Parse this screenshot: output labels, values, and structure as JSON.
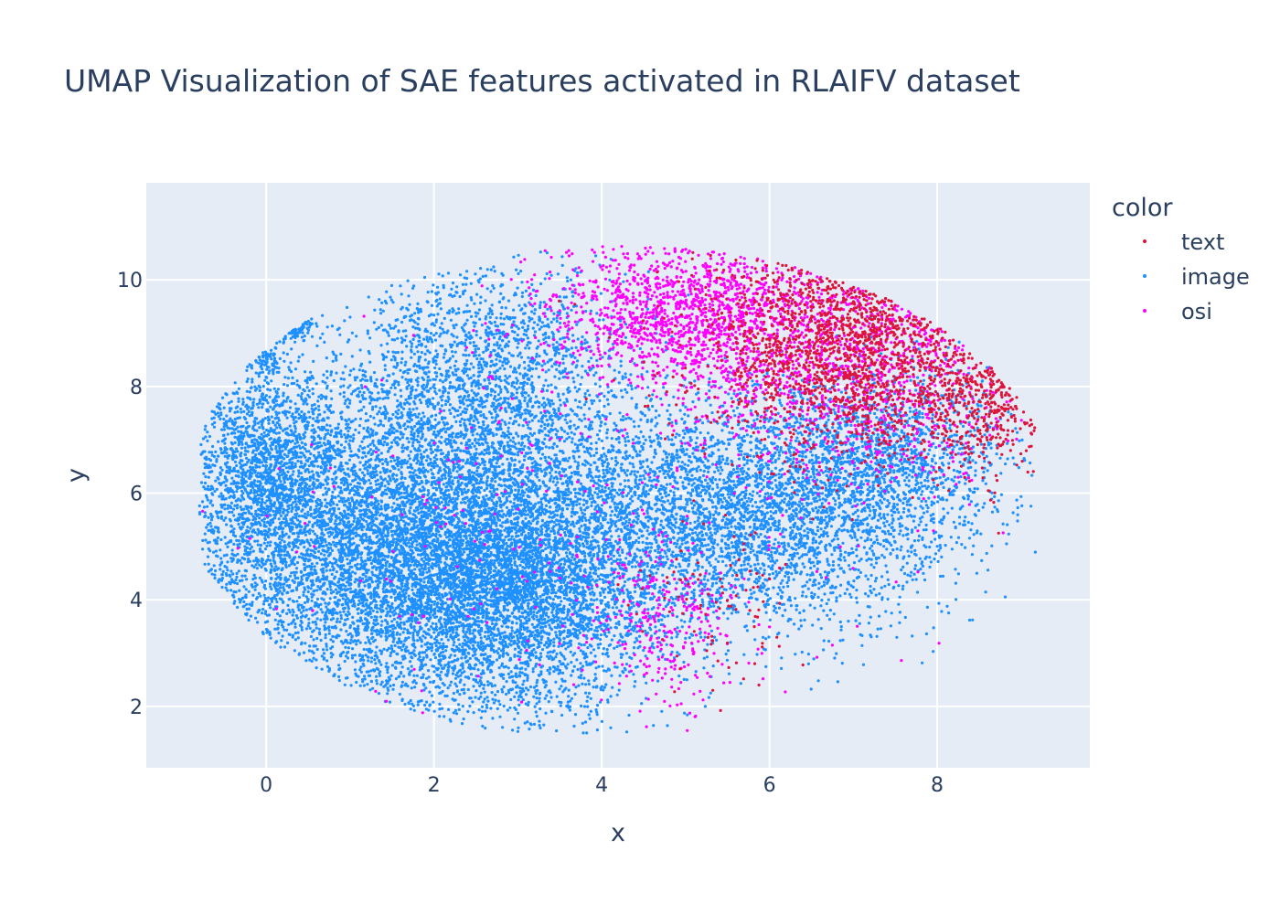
{
  "chart_data": {
    "type": "scatter",
    "title": "UMAP Visualization of SAE features activated in RLAIFV dataset",
    "xlabel": "x",
    "ylabel": "y",
    "xlim": [
      -1.43,
      9.82
    ],
    "ylim": [
      0.85,
      11.82
    ],
    "xticks": [
      0,
      2,
      4,
      6,
      8
    ],
    "yticks": [
      2,
      4,
      6,
      8,
      10
    ],
    "grid": true,
    "background": "#e5ecf6",
    "legend": {
      "title": "color",
      "position": "right",
      "entries": [
        "text",
        "image",
        "osi"
      ]
    },
    "series": [
      {
        "name": "text",
        "color": "#dc143c",
        "points_note_regions": [
          {
            "cx": 7.0,
            "cy": 8.8,
            "sx": 0.85,
            "sy": 1.1,
            "n": 1700
          },
          {
            "cx": 8.6,
            "cy": 7.6,
            "sx": 0.45,
            "sy": 0.6,
            "n": 350
          },
          {
            "cx": 5.4,
            "cy": 4.0,
            "sx": 0.5,
            "sy": 0.9,
            "n": 90
          }
        ]
      },
      {
        "name": "image",
        "color": "#1e90ff",
        "points_note_regions": [
          {
            "cx": 1.6,
            "cy": 5.0,
            "sx": 1.3,
            "sy": 1.5,
            "n": 7000
          },
          {
            "cx": 3.0,
            "cy": 4.3,
            "sx": 0.9,
            "sy": 1.2,
            "n": 3500
          },
          {
            "cx": 2.6,
            "cy": 8.2,
            "sx": 0.9,
            "sy": 1.1,
            "n": 1800
          },
          {
            "cx": 0.0,
            "cy": 6.6,
            "sx": 0.45,
            "sy": 0.9,
            "n": 1300
          },
          {
            "cx": 5.6,
            "cy": 5.6,
            "sx": 1.2,
            "sy": 1.1,
            "n": 3800
          },
          {
            "cx": 7.4,
            "cy": 6.6,
            "sx": 0.7,
            "sy": 0.9,
            "n": 1300
          },
          {
            "cx": 0.3,
            "cy": 9.2,
            "sx": 0.1,
            "sy": 0.15,
            "n": 80
          },
          {
            "cx": 0.0,
            "cy": 8.5,
            "sx": 0.12,
            "sy": 0.12,
            "n": 60
          }
        ]
      },
      {
        "name": "osi",
        "color": "#ff00ff",
        "points_note_regions": [
          {
            "cx": 5.0,
            "cy": 9.4,
            "sx": 0.8,
            "sy": 0.7,
            "n": 1400
          },
          {
            "cx": 7.0,
            "cy": 8.6,
            "sx": 1.0,
            "sy": 1.2,
            "n": 1100
          },
          {
            "cx": 4.8,
            "cy": 3.5,
            "sx": 0.4,
            "sy": 0.8,
            "n": 250
          },
          {
            "cx": 3.5,
            "cy": 5.5,
            "sx": 2.0,
            "sy": 2.0,
            "n": 250
          }
        ]
      }
    ]
  }
}
